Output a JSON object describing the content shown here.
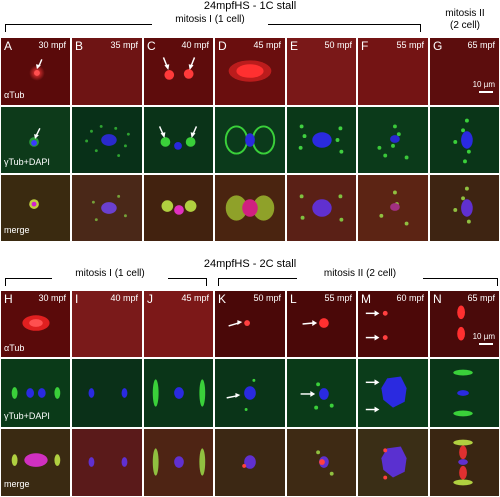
{
  "top": {
    "title": "24mpfHS - 1C stall",
    "group1": "mitosis I (1 cell)",
    "group2_line1": "mitosis II",
    "group2_line2": "(2 cell)",
    "panels": [
      {
        "letter": "A",
        "time": "30 mpf"
      },
      {
        "letter": "B",
        "time": "35 mpf"
      },
      {
        "letter": "C",
        "time": "40 mpf"
      },
      {
        "letter": "D",
        "time": "45 mpf"
      },
      {
        "letter": "E",
        "time": "50 mpf"
      },
      {
        "letter": "F",
        "time": "55 mpf"
      },
      {
        "letter": "G",
        "time": "65 mpf"
      }
    ],
    "scale": "10 µm"
  },
  "bottom": {
    "title": "24mpfHS - 2C stall",
    "group1": "mitosis I (1 cell)",
    "group2": "mitosis II (2 cell)",
    "panels": [
      {
        "letter": "H",
        "time": "30 mpf"
      },
      {
        "letter": "I",
        "time": "40 mpf"
      },
      {
        "letter": "J",
        "time": "45 mpf"
      },
      {
        "letter": "K",
        "time": "50 mpf"
      },
      {
        "letter": "L",
        "time": "55 mpf"
      },
      {
        "letter": "M",
        "time": "60 mpf"
      },
      {
        "letter": "N",
        "time": "65 mpf"
      }
    ],
    "scale": "10 µm"
  },
  "rows": {
    "row1": "αTub",
    "row2": "γTub+DAPI",
    "row3": "merge"
  }
}
